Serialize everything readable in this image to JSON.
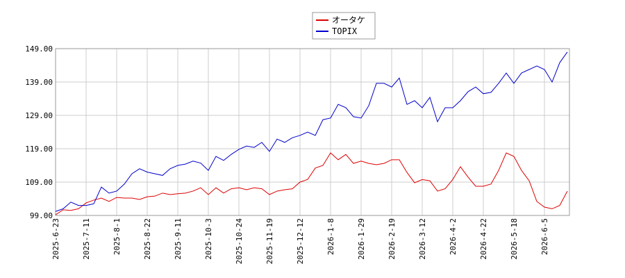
{
  "chart_data": {
    "type": "line",
    "categories": [
      "2025-6-23",
      null,
      null,
      null,
      "2025-7-11",
      null,
      null,
      null,
      "2025-8-1",
      null,
      null,
      null,
      "2025-8-22",
      null,
      null,
      null,
      "2025-9-11",
      null,
      null,
      null,
      "2025-10-3",
      null,
      null,
      null,
      "2025-10-24",
      null,
      null,
      null,
      "2025-11-19",
      null,
      null,
      null,
      "2025-12-12",
      null,
      null,
      null,
      "2026-1-8",
      null,
      null,
      null,
      "2026-1-29",
      null,
      null,
      null,
      "2026-2-19",
      null,
      null,
      null,
      "2026-3-12",
      null,
      null,
      null,
      "2026-4-2",
      null,
      null,
      null,
      "2026-4-22",
      null,
      null,
      null,
      "2026-5-18",
      null,
      null,
      null,
      "2026-6-5",
      null,
      null,
      null
    ],
    "series": [
      {
        "name": "オータケ",
        "color": "#dd0000",
        "values": [
          99.2,
          100.7,
          100.5,
          101,
          102.75,
          103.6,
          104.2,
          103.2,
          104.4,
          104.2,
          104.2,
          103.8,
          104.6,
          104.8,
          105.7,
          105.25,
          105.5,
          105.7,
          106.3,
          107.3,
          105.25,
          107.3,
          105.7,
          107,
          107.3,
          106.7,
          107.3,
          107,
          105.25,
          106.3,
          106.7,
          107,
          109,
          109.8,
          113.2,
          114,
          117.75,
          115.7,
          117.3,
          114.6,
          115.3,
          114.6,
          114.2,
          114.6,
          115.7,
          115.7,
          111.9,
          108.8,
          109.75,
          109.4,
          106.3,
          107,
          109.8,
          113.6,
          110.5,
          107.75,
          107.75,
          108.4,
          112.5,
          117.75,
          116.7,
          112.5,
          109.4,
          103.2,
          101.5,
          101,
          102,
          106.3
        ]
      },
      {
        "name": "TOPIX",
        "color": "#0000cc",
        "values": [
          100.2,
          101,
          103,
          102,
          102,
          102.5,
          107.5,
          105.7,
          106.3,
          108.4,
          111.5,
          113,
          112,
          111.5,
          111,
          113,
          114,
          114.4,
          115.3,
          114.7,
          112.5,
          116.7,
          115.5,
          117.3,
          118.8,
          119.8,
          119.4,
          120.9,
          118.2,
          121.9,
          120.9,
          122.3,
          123,
          124,
          123,
          127.7,
          128.2,
          132.3,
          131.3,
          128.6,
          128.2,
          131.9,
          138.6,
          138.6,
          137.5,
          140.2,
          132.3,
          133.4,
          131.3,
          134.4,
          127.1,
          131.3,
          131.3,
          133.4,
          136.1,
          137.5,
          135.5,
          135.9,
          138.6,
          141.7,
          138.6,
          141.7,
          142.75,
          143.8,
          142.75,
          139,
          144.8,
          148
        ]
      }
    ],
    "ylim": [
      99,
      149
    ],
    "yticks": [
      {
        "value": 99,
        "label": "99.00"
      },
      {
        "value": 109,
        "label": "109.00"
      },
      {
        "value": 119,
        "label": "119.00"
      },
      {
        "value": 129,
        "label": "129.00"
      },
      {
        "value": 139,
        "label": "139.00"
      },
      {
        "value": 149,
        "label": "149.00"
      }
    ],
    "grid": true,
    "legend": "top"
  }
}
